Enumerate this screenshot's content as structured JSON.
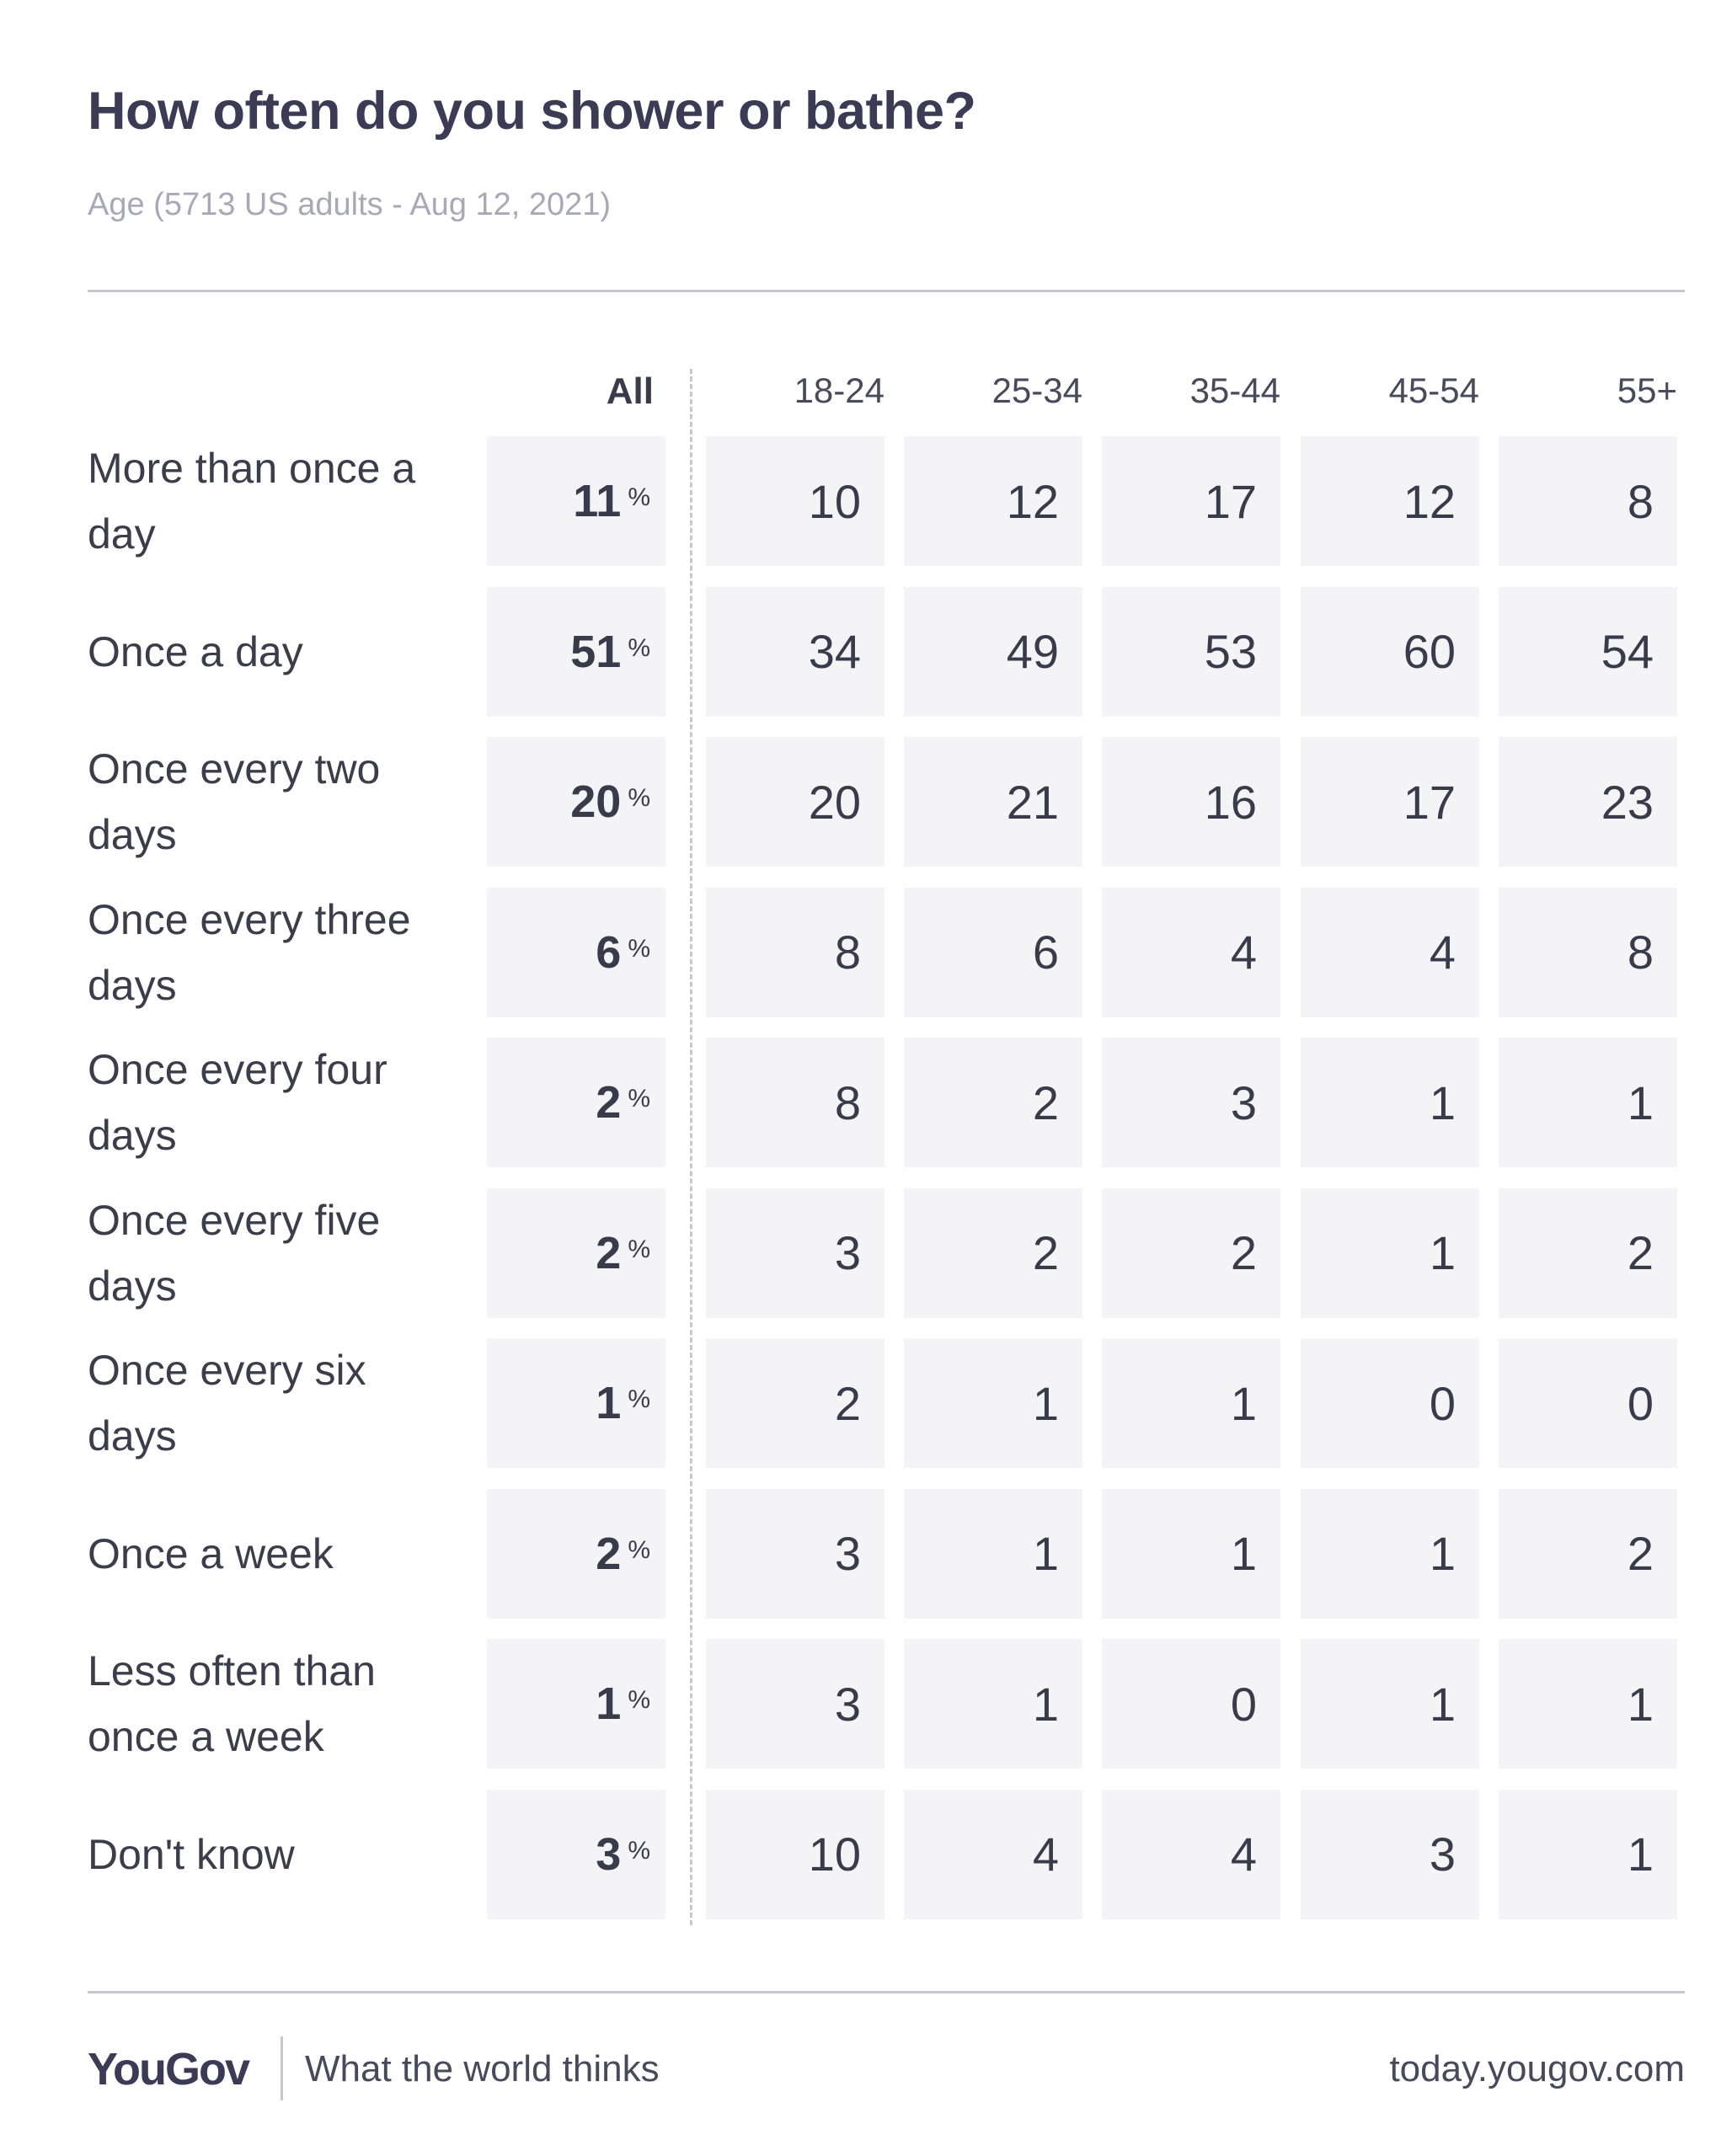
{
  "title": "How often do you shower or bathe?",
  "subtitle": "Age (5713 US adults - Aug 12, 2021)",
  "footer": {
    "logo": "YouGov",
    "tagline": "What the world thinks",
    "url": "today.yougov.com"
  },
  "colors": {
    "title": "#3d3a55",
    "cell_background": "#f4f4f7",
    "rule": "#c9c8d2"
  },
  "chart_data": {
    "type": "table",
    "columns": [
      "All",
      "18-24",
      "25-34",
      "35-44",
      "45-54",
      "55+"
    ],
    "percent_suffix": "%",
    "rows": [
      {
        "label": "More than once a day",
        "values": [
          11,
          10,
          12,
          17,
          12,
          8
        ]
      },
      {
        "label": "Once a day",
        "values": [
          51,
          34,
          49,
          53,
          60,
          54
        ]
      },
      {
        "label": "Once every two days",
        "values": [
          20,
          20,
          21,
          16,
          17,
          23
        ]
      },
      {
        "label": "Once every three days",
        "values": [
          6,
          8,
          6,
          4,
          4,
          8
        ]
      },
      {
        "label": "Once every four days",
        "values": [
          2,
          8,
          2,
          3,
          1,
          1
        ]
      },
      {
        "label": "Once every five days",
        "values": [
          2,
          3,
          2,
          2,
          1,
          2
        ]
      },
      {
        "label": "Once every six days",
        "values": [
          1,
          2,
          1,
          1,
          0,
          0
        ]
      },
      {
        "label": "Once a week",
        "values": [
          2,
          3,
          1,
          1,
          1,
          2
        ]
      },
      {
        "label": "Less often than once a week",
        "values": [
          1,
          3,
          1,
          0,
          1,
          1
        ]
      },
      {
        "label": "Don't know",
        "values": [
          3,
          10,
          4,
          4,
          3,
          1
        ]
      }
    ]
  }
}
